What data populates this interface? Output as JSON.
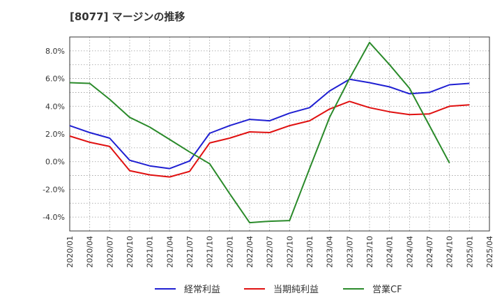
{
  "chart_data": {
    "type": "line",
    "title": "[8077]  マージンの推移",
    "xlabel": "",
    "ylabel": "",
    "ylim": [
      -5.0,
      9.0
    ],
    "yticks": [
      "8.0%",
      "6.0%",
      "4.0%",
      "2.0%",
      "0.0%",
      "-2.0%",
      "-4.0%"
    ],
    "ytick_values": [
      8,
      6,
      4,
      2,
      0,
      -2,
      -4
    ],
    "categories": [
      "2020/01",
      "2020/04",
      "2020/07",
      "2020/10",
      "2021/01",
      "2021/04",
      "2021/07",
      "2021/10",
      "2022/01",
      "2022/04",
      "2022/07",
      "2022/10",
      "2023/01",
      "2023/04",
      "2023/07",
      "2023/10",
      "2024/01",
      "2024/04",
      "2024/07",
      "2024/10",
      "2025/01",
      "2025/04"
    ],
    "grid": true,
    "legend_position": "bottom",
    "series": [
      {
        "name": "経常利益",
        "color": "#1f1fd2",
        "values": [
          2.6,
          2.1,
          1.7,
          0.1,
          -0.3,
          -0.5,
          0.05,
          2.05,
          2.6,
          3.05,
          2.95,
          3.5,
          3.9,
          5.1,
          5.95,
          5.7,
          5.4,
          4.9,
          5.0,
          5.55,
          5.65,
          null
        ]
      },
      {
        "name": "当期純利益",
        "color": "#e01010",
        "values": [
          1.85,
          1.4,
          1.1,
          -0.65,
          -0.95,
          -1.1,
          -0.7,
          1.35,
          1.7,
          2.15,
          2.1,
          2.6,
          2.95,
          3.8,
          4.35,
          3.9,
          3.6,
          3.4,
          3.45,
          4.0,
          4.1,
          null
        ]
      },
      {
        "name": "営業CF",
        "color": "#2a8a2a",
        "values": [
          5.7,
          5.65,
          4.5,
          3.2,
          2.5,
          1.6,
          0.7,
          -0.15,
          -2.3,
          -4.4,
          -4.3,
          -4.25,
          -0.5,
          3.2,
          6.0,
          8.6,
          7.0,
          5.3,
          2.6,
          -0.1,
          null,
          null
        ]
      }
    ]
  }
}
